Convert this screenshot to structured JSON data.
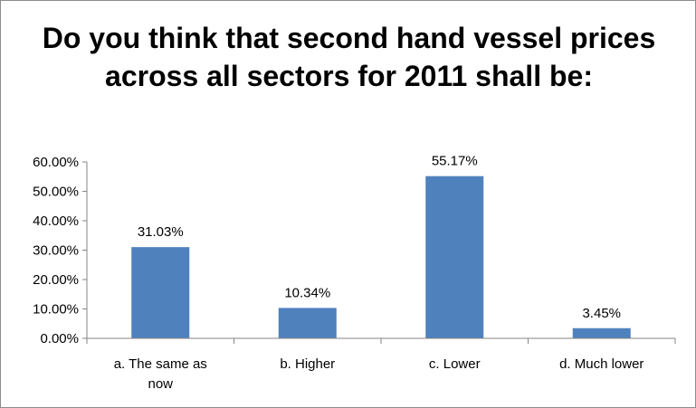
{
  "chart_data": {
    "type": "bar",
    "title": "Do you think that second hand vessel prices across all sectors for 2011 shall be:",
    "categories": [
      "a. The same as now",
      "b. Higher",
      "c. Lower",
      "d. Much lower"
    ],
    "category_lines": [
      [
        "a. The same as",
        "now"
      ],
      [
        "b. Higher"
      ],
      [
        "c. Lower"
      ],
      [
        "d. Much lower"
      ]
    ],
    "values": [
      31.03,
      10.34,
      55.17,
      3.45
    ],
    "data_labels": [
      "31.03%",
      "10.34%",
      "55.17%",
      "3.45%"
    ],
    "yticks": [
      0,
      10,
      20,
      30,
      40,
      50,
      60
    ],
    "ytick_labels": [
      "0.00%",
      "10.00%",
      "20.00%",
      "30.00%",
      "40.00%",
      "50.00%",
      "60.00%"
    ],
    "ylim": [
      0,
      60
    ],
    "xlabel": "",
    "ylabel": "",
    "grid": false,
    "legend": "none",
    "bar_color": "#4f81bd"
  }
}
